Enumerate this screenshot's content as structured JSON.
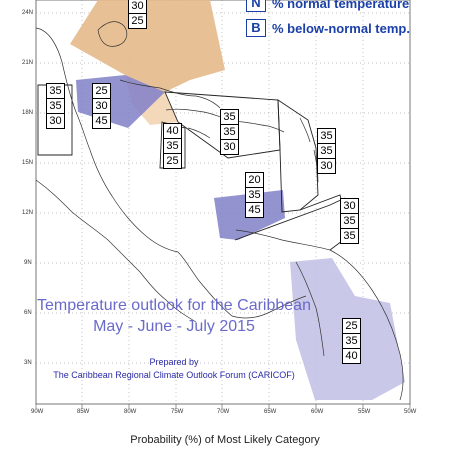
{
  "legend": {
    "items": [
      {
        "key": "N",
        "label": "% normal temperature"
      },
      {
        "key": "B",
        "label": "% below-normal temp."
      }
    ]
  },
  "colors": {
    "above_region": "#e6b98a",
    "above_light": "#f3d4b3",
    "below_region": "#8080c8",
    "below_light": "#c4c2e6",
    "title_color": "#6a6acb",
    "legend_color": "#1a3fa8"
  },
  "title": {
    "line1": "Temperature outlook for the Caribbean",
    "line2": "May - June - July 2015"
  },
  "prepared": {
    "line1": "Prepared by",
    "line2": "The Caribbean Regional Climate Outlook Forum (CARICOF)"
  },
  "caption": "Probability (%) of Most Likely Category",
  "latitude_labels": [
    "24N",
    "21N",
    "18N",
    "15N",
    "12N",
    "9N",
    "6N",
    "3N"
  ],
  "longitude_labels": [
    "90W",
    "85W",
    "80W",
    "75W",
    "70W",
    "65W",
    "60W",
    "55W",
    "50W"
  ],
  "probability_boxes": [
    {
      "id": "bahamas",
      "values": [
        "30",
        "25"
      ]
    },
    {
      "id": "belize",
      "values": [
        "35",
        "35",
        "30"
      ]
    },
    {
      "id": "cayman",
      "values": [
        "25",
        "30",
        "45"
      ]
    },
    {
      "id": "jamaica",
      "values": [
        "40",
        "35",
        "25"
      ]
    },
    {
      "id": "hispaniola",
      "values": [
        "35",
        "35",
        "30"
      ]
    },
    {
      "id": "east-caribbean",
      "values": [
        "35",
        "35",
        "30"
      ]
    },
    {
      "id": "abc-islands",
      "values": [
        "20",
        "35",
        "45"
      ]
    },
    {
      "id": "trinidad",
      "values": [
        "30",
        "35",
        "35"
      ]
    },
    {
      "id": "guianas",
      "values": [
        "25",
        "35",
        "40"
      ]
    }
  ]
}
